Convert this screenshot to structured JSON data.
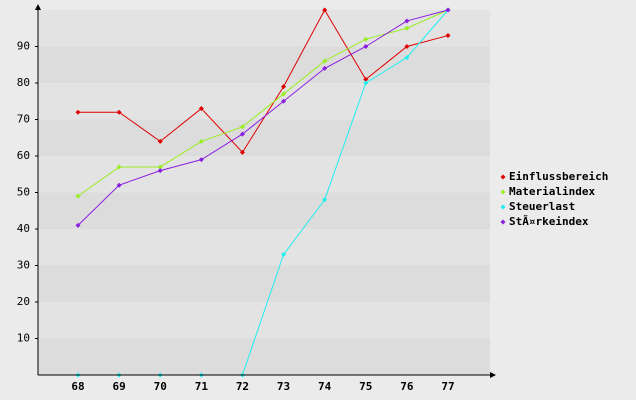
{
  "chart_data": {
    "type": "line",
    "categories": [
      "68",
      "69",
      "70",
      "71",
      "72",
      "73",
      "74",
      "75",
      "76",
      "77"
    ],
    "series": [
      {
        "name": "Einflussbereich",
        "color": "#e00000",
        "values": [
          72,
          72,
          64,
          73,
          61,
          79,
          100,
          81,
          90,
          93
        ]
      },
      {
        "name": "Materialindex",
        "color": "#99ee22",
        "values": [
          49,
          57,
          57,
          64,
          68,
          77,
          86,
          92,
          95,
          100
        ]
      },
      {
        "name": "Steuerlast",
        "color": "#22eeee",
        "values": [
          0,
          0,
          0,
          0,
          0,
          33,
          48,
          80,
          87,
          100
        ]
      },
      {
        "name": "StÃ¤rkeindex",
        "color": "#8a1ee0",
        "values": [
          41,
          52,
          56,
          59,
          66,
          75,
          84,
          90,
          97,
          100
        ]
      }
    ],
    "ylim": [
      0,
      100
    ],
    "yticks": [
      10,
      20,
      30,
      40,
      50,
      60,
      70,
      80,
      90
    ],
    "grid": true,
    "legend": "right"
  }
}
